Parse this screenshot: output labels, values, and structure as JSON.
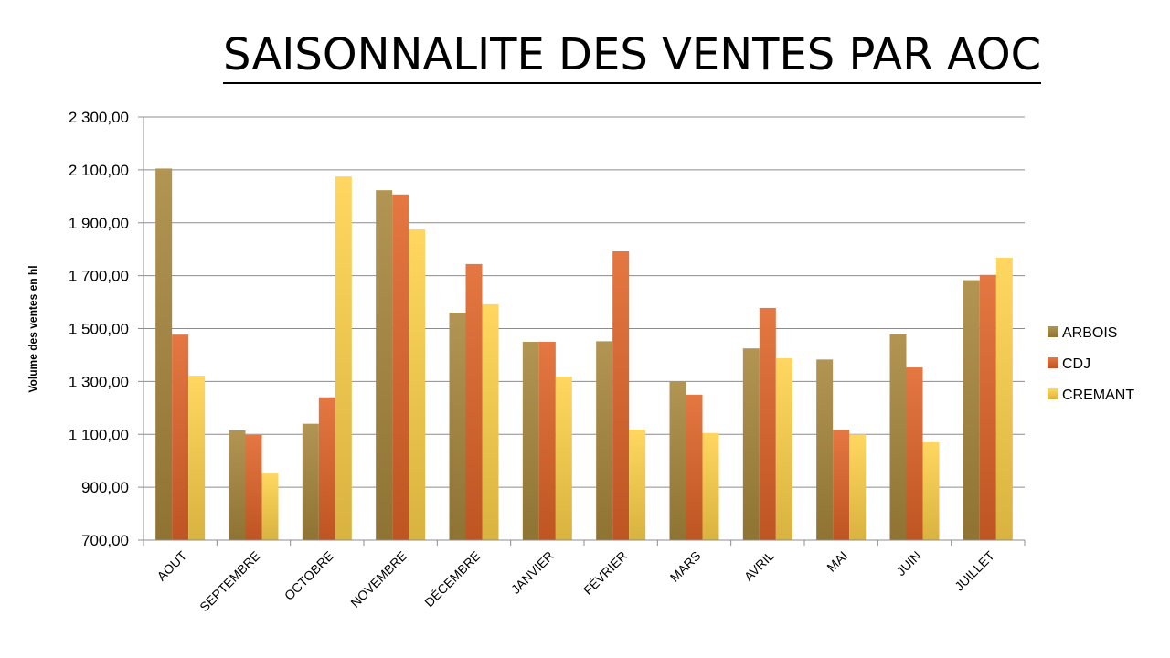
{
  "title": "SAISONNALITE DES VENTES PAR AOC",
  "chart_data": {
    "type": "bar",
    "title": "SAISONNALITE DES VENTES PAR AOC",
    "ylabel": "Volume des ventes en hl",
    "xlabel": "",
    "ylim": [
      700,
      2300
    ],
    "yticks": [
      700,
      900,
      1100,
      1300,
      1500,
      1700,
      1900,
      2100,
      2300
    ],
    "ytick_labels": [
      "700,00",
      "900,00",
      "1 100,00",
      "1 300,00",
      "1 500,00",
      "1 700,00",
      "1 900,00",
      "2 100,00",
      "2 300,00"
    ],
    "grid": true,
    "legend_position": "right",
    "categories": [
      "AOUT",
      "SEPTEMBRE",
      "OCTOBRE",
      "NOVEMBRE",
      "DÉCEMBRE",
      "JANVIER",
      "FÉVRIER",
      "MARS",
      "AVRIL",
      "MAI",
      "JUIN",
      "JUILLET"
    ],
    "series": [
      {
        "name": "ARBOIS",
        "color": "#A8873C",
        "values": [
          2105,
          1115,
          1140,
          2023,
          1560,
          1450,
          1452,
          1300,
          1425,
          1383,
          1478,
          1683
        ]
      },
      {
        "name": "CDJ",
        "color": "#E06428",
        "values": [
          1477,
          1098,
          1240,
          2007,
          1744,
          1450,
          1792,
          1250,
          1578,
          1117,
          1353,
          1703
        ]
      },
      {
        "name": "CREMANT",
        "color": "#FFD24A",
        "values": [
          1322,
          952,
          2075,
          1875,
          1592,
          1318,
          1118,
          1105,
          1388,
          1100,
          1070,
          1768
        ]
      }
    ]
  }
}
